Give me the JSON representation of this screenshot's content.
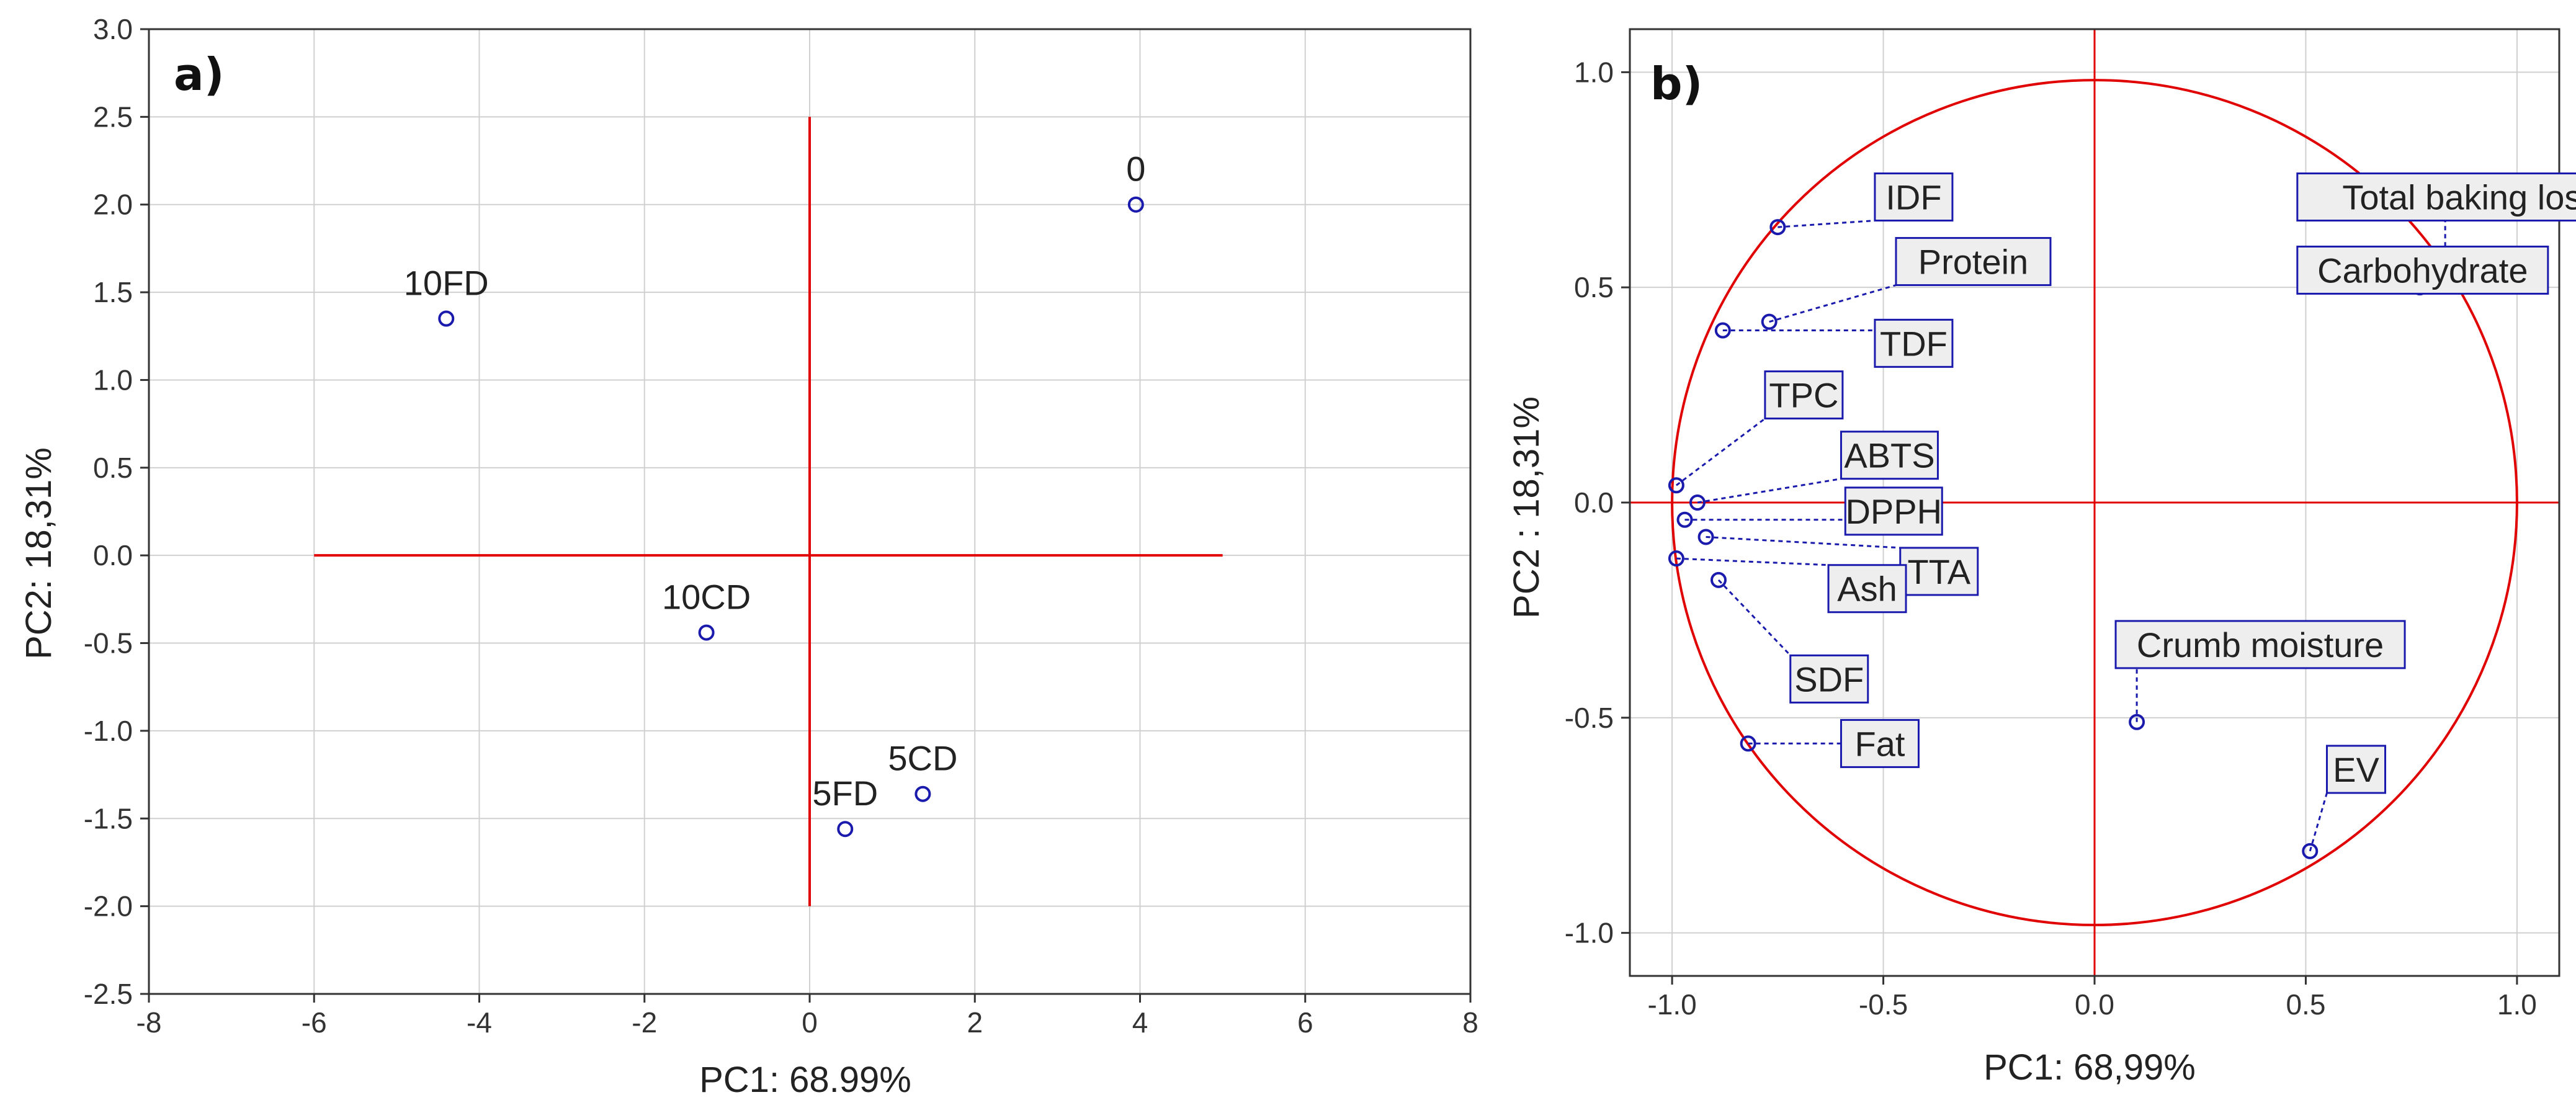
{
  "colors": {
    "point": "#1a1aad",
    "ref_line": "#e00000",
    "grid": "#d0d0d0",
    "frame": "#333333",
    "label_fill": "#eeeeee",
    "label_border": "#1a1aad"
  },
  "chart_data": [
    {
      "type": "scatter",
      "panel_label": "a)",
      "xlabel": "PC1: 68.99%",
      "ylabel": "PC2: 18,31%",
      "xlim": [
        -8,
        8
      ],
      "ylim": [
        -2.5,
        3.0
      ],
      "x_ticks": [
        -8,
        -6,
        -4,
        -2,
        0,
        2,
        4,
        6,
        8
      ],
      "x_tick_labels": [
        "-8",
        "-6",
        "-4",
        "-2",
        "0",
        "2",
        "4",
        "6",
        "8"
      ],
      "y_ticks": [
        -2.5,
        -2.0,
        -1.5,
        -1.0,
        -0.5,
        0.0,
        0.5,
        1.0,
        1.5,
        2.0,
        2.5,
        3.0
      ],
      "y_tick_labels": [
        "-2.5",
        "-2.0",
        "-1.5",
        "-1.0",
        "-0.5",
        "0.0",
        "0.5",
        "1.0",
        "1.5",
        "2.0",
        "2.5",
        "3.0"
      ],
      "grid": true,
      "reference_lines": {
        "horizontal": {
          "y": 0,
          "x_from": -6,
          "x_to": 5
        },
        "vertical": {
          "x": 0,
          "y_from": -2,
          "y_to": 2.5
        }
      },
      "points": [
        {
          "label": "0",
          "x": 3.95,
          "y": 2.0
        },
        {
          "label": "10FD",
          "x": -4.4,
          "y": 1.35
        },
        {
          "label": "10CD",
          "x": -1.25,
          "y": -0.44
        },
        {
          "label": "5CD",
          "x": 1.37,
          "y": -1.36
        },
        {
          "label": "5FD",
          "x": 0.43,
          "y": -1.56
        }
      ]
    },
    {
      "type": "scatter",
      "panel_label": "b)",
      "xlabel": "PC1: 68,99%",
      "ylabel": "PC2 : 18,31%",
      "xlim": [
        -1.1,
        1.1
      ],
      "ylim": [
        -1.1,
        1.1
      ],
      "x_ticks": [
        -1.0,
        -0.5,
        0.0,
        0.5,
        1.0
      ],
      "x_tick_labels": [
        "-1.0",
        "-0.5",
        "0.0",
        "0.5",
        "1.0"
      ],
      "y_ticks": [
        -1.0,
        -0.5,
        0.0,
        0.5,
        1.0
      ],
      "y_tick_labels": [
        "-1.0",
        "-0.5",
        "0.0",
        "0.5",
        "1.0"
      ],
      "grid": true,
      "unit_circle": true,
      "reference_lines": {
        "horizontal": {
          "y": 0
        },
        "vertical": {
          "x": 0
        }
      },
      "variables": [
        {
          "label": "IDF",
          "x": -0.75,
          "y": 0.64,
          "label_x": -0.52,
          "label_y": 0.71
        },
        {
          "label": "Protein",
          "x": -0.77,
          "y": 0.42,
          "label_x": -0.47,
          "label_y": 0.56
        },
        {
          "label": "TDF",
          "x": -0.88,
          "y": 0.4,
          "label_x": -0.52,
          "label_y": 0.37
        },
        {
          "label": "TPC",
          "x": -0.99,
          "y": 0.04,
          "label_x": -0.78,
          "label_y": 0.25
        },
        {
          "label": "ABTS",
          "x": -0.94,
          "y": 0.0,
          "label_x": -0.6,
          "label_y": 0.11
        },
        {
          "label": "DPPH",
          "x": -0.97,
          "y": -0.04,
          "label_x": -0.59,
          "label_y": -0.02
        },
        {
          "label": "TTA",
          "x": -0.92,
          "y": -0.08,
          "label_x": -0.46,
          "label_y": -0.16
        },
        {
          "label": "Ash",
          "x": -0.99,
          "y": -0.13,
          "label_x": -0.63,
          "label_y": -0.2
        },
        {
          "label": "SDF",
          "x": -0.89,
          "y": -0.18,
          "label_x": -0.72,
          "label_y": -0.41
        },
        {
          "label": "Fat",
          "x": -0.82,
          "y": -0.56,
          "label_x": -0.6,
          "label_y": -0.56
        },
        {
          "label": "Total baking loss",
          "x": 0.83,
          "y": 0.52,
          "label_x": 0.48,
          "label_y": 0.71
        },
        {
          "label": "Carbohydrate",
          "x": 0.77,
          "y": 0.5,
          "label_x": 0.48,
          "label_y": 0.54
        },
        {
          "label": "Crumb moisture",
          "x": 0.1,
          "y": -0.51,
          "label_x": 0.05,
          "label_y": -0.33
        },
        {
          "label": "EV",
          "x": 0.51,
          "y": -0.81,
          "label_x": 0.55,
          "label_y": -0.62
        }
      ]
    }
  ]
}
